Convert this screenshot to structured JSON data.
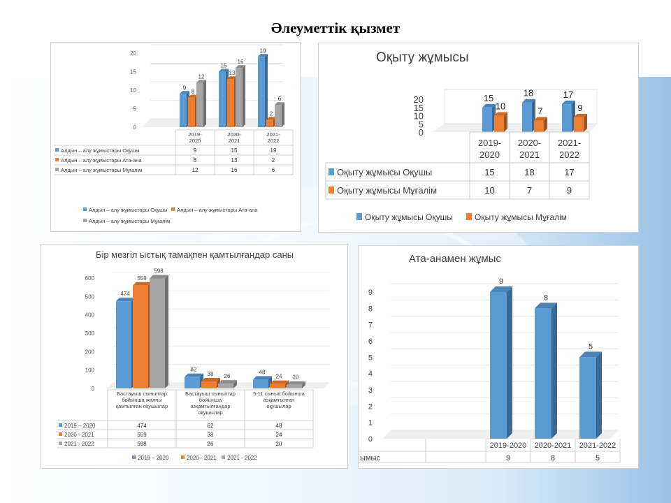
{
  "slide": {
    "title": "Әлеуметтік қызмет"
  },
  "chart_data": [
    {
      "type": "bar",
      "title": "",
      "categories": [
        "2019-2020",
        "2020-2021",
        "2021-2022"
      ],
      "category_lines": [
        [
          "2019-",
          "2020"
        ],
        [
          "2020-",
          "2021"
        ],
        [
          "2021-",
          "2022"
        ]
      ],
      "series": [
        {
          "name": "Алдын – алу жұмыстары Оқушы",
          "values": [
            9,
            15,
            19
          ]
        },
        {
          "name": "Алдын – алу жұмыстары Ата-ана",
          "values": [
            8,
            13,
            2
          ]
        },
        {
          "name": "Алдын – алу жұмыстары Мұғалім",
          "values": [
            12,
            16,
            6
          ]
        }
      ],
      "ylim": [
        0,
        20
      ],
      "yticks": [
        0,
        5,
        10,
        15,
        20
      ],
      "legend": "bottom",
      "data_table": true
    },
    {
      "type": "bar",
      "title": "Оқыту жұмысы",
      "categories": [
        "2019-2020",
        "2020-2021",
        "2021-2022"
      ],
      "category_lines": [
        [
          "2019-",
          "2020"
        ],
        [
          "2020-",
          "2021"
        ],
        [
          "2021-",
          "2022"
        ]
      ],
      "series": [
        {
          "name": "Оқыту жұмысы Оқушы",
          "values": [
            15,
            18,
            17
          ]
        },
        {
          "name": "Оқыту жұмысы Мұғалім",
          "values": [
            10,
            7,
            9
          ]
        }
      ],
      "ylim": [
        0,
        20
      ],
      "yticks": [
        0,
        5,
        10,
        15,
        20
      ],
      "legend": "bottom",
      "data_table": true
    },
    {
      "type": "bar",
      "title": "Бір мезгіл ыстық тамақпен қамтылғандар саны",
      "categories": [
        "Бастауыш сыныптар бойынша жалпы қамтылған оқушылар",
        "Бастауыш сыныптар бойынша азқамтылғандар оқушылар",
        "5-11 сынып бойынша азқамтылған оқушылар"
      ],
      "category_lines": [
        [
          "Бастауыш сыныптар",
          "бойынша жалпы",
          "қамтылған оқушылар"
        ],
        [
          "Бастауыш сыныптар",
          "бойынша",
          "азқамтылғандар",
          "оқушылар"
        ],
        [
          "5-11 сынып бойынша",
          "азқамтылған",
          "оқушылар"
        ]
      ],
      "series": [
        {
          "name": "2019 – 2020",
          "values": [
            474,
            62,
            48
          ]
        },
        {
          "name": "2020 - 2021",
          "values": [
            559,
            38,
            24
          ]
        },
        {
          "name": "2021 - 2022",
          "values": [
            598,
            26,
            20
          ]
        }
      ],
      "ylim": [
        0,
        600
      ],
      "yticks": [
        0,
        100,
        200,
        300,
        400,
        500,
        600
      ],
      "legend": "bottom",
      "data_table": true
    },
    {
      "type": "bar",
      "title": "Ата-анамен жұмыс",
      "categories": [
        "2019-2020",
        "2020-2021",
        "2021-2022"
      ],
      "series": [
        {
          "name": "ымыс",
          "values": [
            9,
            8,
            5
          ]
        }
      ],
      "ylim": [
        0,
        9
      ],
      "yticks": [
        0,
        1,
        2,
        3,
        4,
        5,
        6,
        7,
        8,
        9
      ],
      "data_table": true
    }
  ],
  "colors": {
    "blue": "#5b9bd5",
    "orange": "#ed7d31",
    "gray": "#a5a5a5"
  }
}
